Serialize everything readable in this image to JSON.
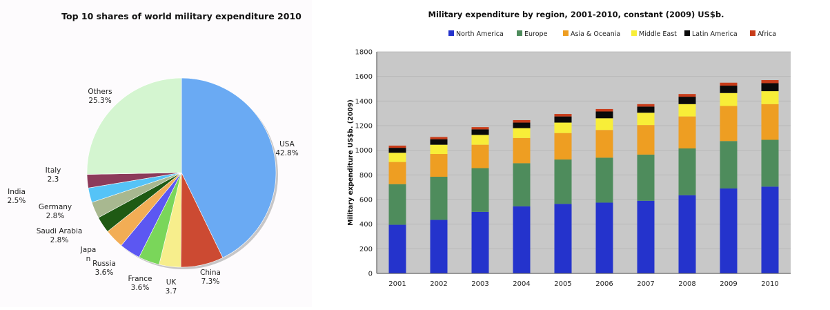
{
  "chart_data": [
    {
      "type": "pie",
      "title": "Top 10 shares of world military expenditure 2010",
      "slices": [
        {
          "name": "USA",
          "value": 42.8,
          "label_lines": [
            "USA",
            "42.8%"
          ],
          "color": "#6aaaf3"
        },
        {
          "name": "China",
          "value": 7.3,
          "label_lines": [
            "China",
            "7.3%"
          ],
          "color": "#cc4a32"
        },
        {
          "name": "UK",
          "value": 3.7,
          "label_lines": [
            "UK",
            "3.7"
          ],
          "color": "#f7ee8c"
        },
        {
          "name": "France",
          "value": 3.6,
          "label_lines": [
            "France",
            "3.6%"
          ],
          "color": "#7ad65a"
        },
        {
          "name": "Russia",
          "value": 3.6,
          "label_lines": [
            "Russia",
            "3.6%"
          ],
          "color": "#5c57f2"
        },
        {
          "name": "Japan",
          "value": 3.3,
          "label_lines": [
            "Japa",
            "n"
          ],
          "color": "#f2ad55"
        },
        {
          "name": "Saudi Arabia",
          "value": 2.8,
          "label_lines": [
            "Saudi Arabia",
            "2.8%"
          ],
          "color": "#1f5a14"
        },
        {
          "name": "Germany",
          "value": 2.8,
          "label_lines": [
            "Germany",
            "2.8%"
          ],
          "color": "#a8b890"
        },
        {
          "name": "India",
          "value": 2.5,
          "label_lines": [
            "India",
            "2.5%"
          ],
          "color": "#55c3f7"
        },
        {
          "name": "Italy",
          "value": 2.3,
          "label_lines": [
            "Italy",
            "2.3"
          ],
          "color": "#8c3a5a"
        },
        {
          "name": "Others",
          "value": 25.3,
          "label_lines": [
            "Others",
            "25.3%"
          ],
          "color": "#d4f5d0"
        }
      ]
    },
    {
      "type": "bar",
      "stacked": true,
      "title": "Military expenditure by region, 2001-2010, constant (2009) US$b.",
      "xlabel": "",
      "ylabel": "Military expenditure US$b. (2009)",
      "ylim": [
        0,
        1800
      ],
      "yticks": [
        "0",
        "200",
        "400",
        "600",
        "800",
        "1000",
        "1200",
        "1400",
        "1600",
        "1800"
      ],
      "grid": true,
      "legend_position": "top",
      "categories": [
        "2001",
        "2002",
        "2003",
        "2004",
        "2005",
        "2006",
        "2007",
        "2008",
        "2009",
        "2010"
      ],
      "series": [
        {
          "name": "North America",
          "color": "#2433cc",
          "values": [
            395,
            435,
            500,
            545,
            565,
            575,
            590,
            635,
            690,
            705
          ]
        },
        {
          "name": "Europe",
          "color": "#4e8c5c",
          "values": [
            330,
            350,
            355,
            350,
            360,
            365,
            375,
            380,
            385,
            380
          ]
        },
        {
          "name": "Asia & Oceania",
          "color": "#ee9e22",
          "values": [
            180,
            185,
            190,
            205,
            215,
            225,
            240,
            260,
            285,
            290
          ]
        },
        {
          "name": "Middle East",
          "color": "#f8ee38",
          "values": [
            75,
            75,
            80,
            80,
            85,
            95,
            100,
            100,
            105,
            105
          ]
        },
        {
          "name": "Latin America",
          "color": "#0a0a0a",
          "values": [
            40,
            45,
            45,
            45,
            50,
            55,
            50,
            60,
            60,
            65
          ]
        },
        {
          "name": "Africa",
          "color": "#c83c1a",
          "values": [
            18,
            18,
            18,
            20,
            20,
            20,
            20,
            22,
            24,
            25
          ]
        }
      ]
    }
  ]
}
